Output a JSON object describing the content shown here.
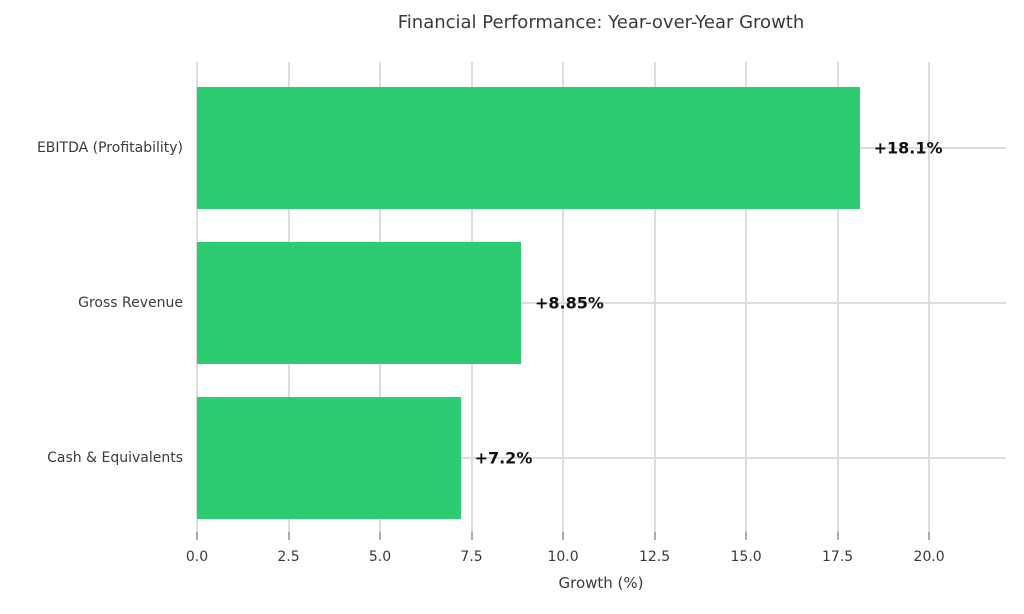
{
  "chart_data": {
    "type": "bar",
    "orientation": "horizontal",
    "title": "Financial Performance: Year-over-Year Growth",
    "categories": [
      "EBITDA (Profitability)",
      "Gross Revenue",
      "Cash & Equivalents"
    ],
    "values": [
      18.1,
      8.85,
      7.2
    ],
    "value_labels": [
      "+18.1%",
      "+8.85%",
      "+7.2%"
    ],
    "xlabel": "Growth (%)",
    "ylabel": "",
    "xlim": [
      0,
      22.1
    ],
    "xticks": [
      0,
      2.5,
      5,
      7.5,
      10,
      12.5,
      15,
      17.5,
      20
    ],
    "xtick_labels": [
      "0.0",
      "2.5",
      "5.0",
      "7.5",
      "10.0",
      "12.5",
      "15.0",
      "17.5",
      "20.0"
    ],
    "grid": true,
    "legend": false,
    "colors": {
      "bar": "#2ECC71",
      "gridline": "#DCDCDC",
      "tick_mark": "#ABABAB",
      "axis_text": "#3A3A3A",
      "value_label_text": "#111111",
      "background": "#FFFFFF"
    }
  }
}
